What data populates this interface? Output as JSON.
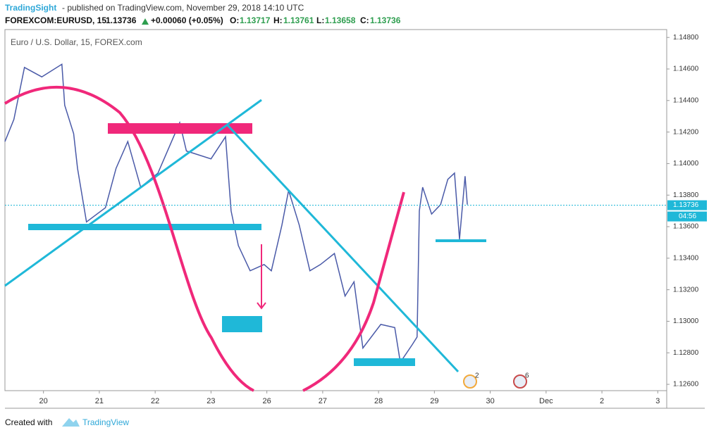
{
  "header": {
    "author": "TradingSight",
    "published": "- published on TradingView.com, November 29, 2018 14:10 UTC",
    "symbol": "FOREXCOM:EURUSD, 15",
    "last": "1.13736",
    "change": "+0.00060 (+0.05%)",
    "ohlc": [
      {
        "key": "O:",
        "value": "1.13717"
      },
      {
        "key": "H:",
        "value": "1.13761"
      },
      {
        "key": "L:",
        "value": "1.13658"
      },
      {
        "key": "C:",
        "value": "1.13736"
      }
    ]
  },
  "chart_data": {
    "type": "line",
    "title": "Euro / U.S. Dollar, 15, FOREX.com",
    "color": "#4a5aa8",
    "x": [
      -0.69,
      -0.53,
      -0.34,
      -0.03,
      0.33,
      0.38,
      0.54,
      0.61,
      0.77,
      1.11,
      1.3,
      1.51,
      1.74,
      2.05,
      2.44,
      2.56,
      3.0,
      3.26,
      3.36,
      3.49,
      3.7,
      3.95,
      4.08,
      4.27,
      4.39,
      4.58,
      4.77,
      4.96,
      5.21,
      5.4,
      5.56,
      5.72,
      6.04,
      6.29,
      6.39,
      6.6,
      6.69,
      6.73,
      6.79,
      6.95,
      7.11,
      7.24,
      7.36,
      7.45,
      7.55,
      7.59
    ],
    "values": [
      1.1414,
      1.1428,
      1.1461,
      1.1455,
      1.1463,
      1.1437,
      1.1419,
      1.1397,
      1.1363,
      1.1372,
      1.1397,
      1.1414,
      1.1385,
      1.1394,
      1.1426,
      1.1408,
      1.1403,
      1.1417,
      1.137,
      1.1348,
      1.1332,
      1.1336,
      1.1332,
      1.1361,
      1.1383,
      1.1361,
      1.1332,
      1.1336,
      1.1343,
      1.1316,
      1.1325,
      1.1283,
      1.1298,
      1.1296,
      1.1274,
      1.1285,
      1.129,
      1.137,
      1.1385,
      1.1368,
      1.1374,
      1.139,
      1.1394,
      1.1352,
      1.1392,
      1.1374
    ],
    "last_price": {
      "value": 1.13736,
      "label": "1.13736"
    },
    "countdown": "04:56",
    "events": [
      "2",
      "6"
    ],
    "xlim": [
      -0.69,
      11.16
    ],
    "ylim": [
      1.1256,
      1.1485
    ],
    "xticks": [
      {
        "value": 0,
        "label": "20"
      },
      {
        "value": 1,
        "label": "21"
      },
      {
        "value": 2,
        "label": "22"
      },
      {
        "value": 3,
        "label": "23"
      },
      {
        "value": 4,
        "label": "26"
      },
      {
        "value": 5,
        "label": "27"
      },
      {
        "value": 6,
        "label": "28"
      },
      {
        "value": 7,
        "label": "29"
      },
      {
        "value": 8,
        "label": "30"
      },
      {
        "value": 9,
        "label": "Dec"
      },
      {
        "value": 10,
        "label": "2"
      },
      {
        "value": 11,
        "label": "3"
      }
    ],
    "yticks": [
      {
        "value": 1.126,
        "label": "1.12600"
      },
      {
        "value": 1.128,
        "label": "1.12800"
      },
      {
        "value": 1.13,
        "label": "1.13000"
      },
      {
        "value": 1.132,
        "label": "1.13200"
      },
      {
        "value": 1.134,
        "label": "1.13400"
      },
      {
        "value": 1.136,
        "label": "1.13600"
      },
      {
        "value": 1.138,
        "label": "1.13800"
      },
      {
        "value": 1.14,
        "label": "1.14000"
      },
      {
        "value": 1.142,
        "label": "1.14200"
      },
      {
        "value": 1.144,
        "label": "1.14400"
      },
      {
        "value": 1.146,
        "label": "1.14600"
      },
      {
        "value": 1.148,
        "label": "1.14800"
      }
    ]
  },
  "footer": {
    "created": "Created with",
    "brand": "TradingView"
  }
}
